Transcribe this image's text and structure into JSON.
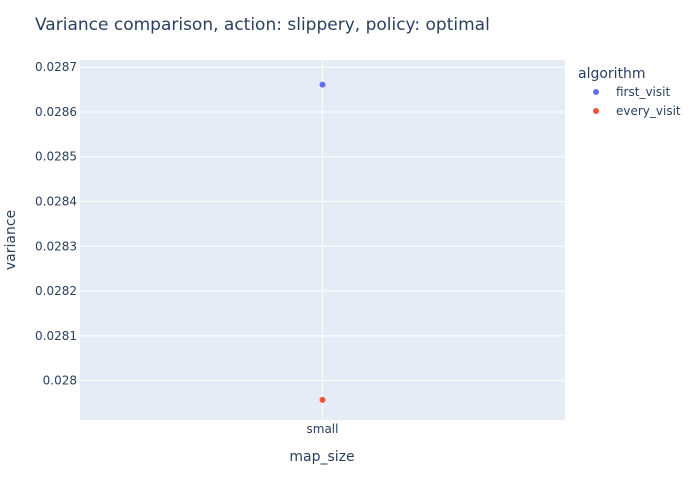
{
  "chart_data": {
    "type": "scatter",
    "title": "Variance comparison, action: slippery, policy: optimal",
    "xlabel": "map_size",
    "ylabel": "variance",
    "categories": [
      "small"
    ],
    "ylim": [
      0.027912,
      0.028716
    ],
    "yticks": [
      0.028,
      0.0281,
      0.0282,
      0.0283,
      0.0284,
      0.0285,
      0.0286,
      0.0287
    ],
    "ytick_labels": [
      "0.028",
      "0.0281",
      "0.0282",
      "0.0283",
      "0.0284",
      "0.0285",
      "0.0286",
      "0.0287"
    ],
    "grid": true,
    "legend": {
      "title": "algorithm",
      "position": "right"
    },
    "series": [
      {
        "name": "first_visit",
        "color": "#636efa",
        "values": [
          0.028661
        ]
      },
      {
        "name": "every_visit",
        "color": "#ef553b",
        "values": [
          0.027957
        ]
      }
    ]
  }
}
